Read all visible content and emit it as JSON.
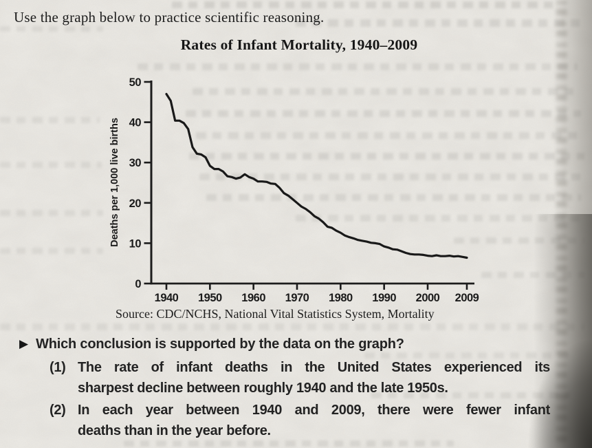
{
  "page": {
    "instruction": "Use the graph below to practice scientific reasoning."
  },
  "chart_data": {
    "type": "line",
    "title": "Rates of Infant Mortality, 1940–2009",
    "ylabel": "Deaths per 1,000 live births",
    "xlabel": "",
    "source": "Source: CDC/NCHS, National Vital Statistics System, Mortality",
    "x_ticks": [
      1940,
      1950,
      1960,
      1970,
      1980,
      1990,
      2000,
      2009
    ],
    "y_ticks": [
      0,
      10,
      20,
      30,
      40,
      50
    ],
    "xlim": [
      1940,
      2009
    ],
    "ylim": [
      0,
      50
    ],
    "grid": false,
    "legend": "none",
    "line_color": "#191919",
    "series": [
      {
        "name": "Infant deaths per 1,000 live births",
        "x": [
          1940,
          1941,
          1942,
          1943,
          1944,
          1945,
          1946,
          1947,
          1948,
          1949,
          1950,
          1951,
          1952,
          1953,
          1954,
          1955,
          1956,
          1957,
          1958,
          1959,
          1960,
          1961,
          1962,
          1963,
          1964,
          1965,
          1966,
          1967,
          1968,
          1969,
          1970,
          1971,
          1972,
          1973,
          1974,
          1975,
          1976,
          1977,
          1978,
          1979,
          1980,
          1981,
          1982,
          1983,
          1984,
          1985,
          1986,
          1987,
          1988,
          1989,
          1990,
          1991,
          1992,
          1993,
          1994,
          1995,
          1996,
          1997,
          1998,
          1999,
          2000,
          2001,
          2002,
          2003,
          2004,
          2005,
          2006,
          2007,
          2008,
          2009
        ],
        "values": [
          47.0,
          45.3,
          40.4,
          40.4,
          39.8,
          38.3,
          33.8,
          32.2,
          32.0,
          31.3,
          29.2,
          28.4,
          28.4,
          27.8,
          26.6,
          26.4,
          26.0,
          26.3,
          27.1,
          26.4,
          26.0,
          25.3,
          25.3,
          25.2,
          24.8,
          24.7,
          23.7,
          22.4,
          21.8,
          20.9,
          20.0,
          19.1,
          18.5,
          17.7,
          16.7,
          16.1,
          15.2,
          14.1,
          13.8,
          13.1,
          12.6,
          11.9,
          11.5,
          11.2,
          10.8,
          10.6,
          10.4,
          10.1,
          10.0,
          9.8,
          9.2,
          8.9,
          8.5,
          8.4,
          8.0,
          7.6,
          7.3,
          7.2,
          7.2,
          7.1,
          6.9,
          6.8,
          7.0,
          6.8,
          6.8,
          6.9,
          6.7,
          6.8,
          6.6,
          6.4
        ]
      }
    ]
  },
  "question": {
    "marker": "▶",
    "prompt": "Which conclusion is supported by the data on the graph?",
    "options": [
      {
        "num": "(1)",
        "lines": [
          "The rate of infant deaths in the United States experienced its",
          "sharpest decline between roughly 1940 and the late 1950s."
        ]
      },
      {
        "num": "(2)",
        "lines": [
          "In each year between 1940 and 2009, there were fewer infant",
          "deaths than in the year before."
        ]
      }
    ]
  },
  "colors": {
    "paper": "#edebe6",
    "ink": "#1d1d1d",
    "curve": "#191919"
  }
}
